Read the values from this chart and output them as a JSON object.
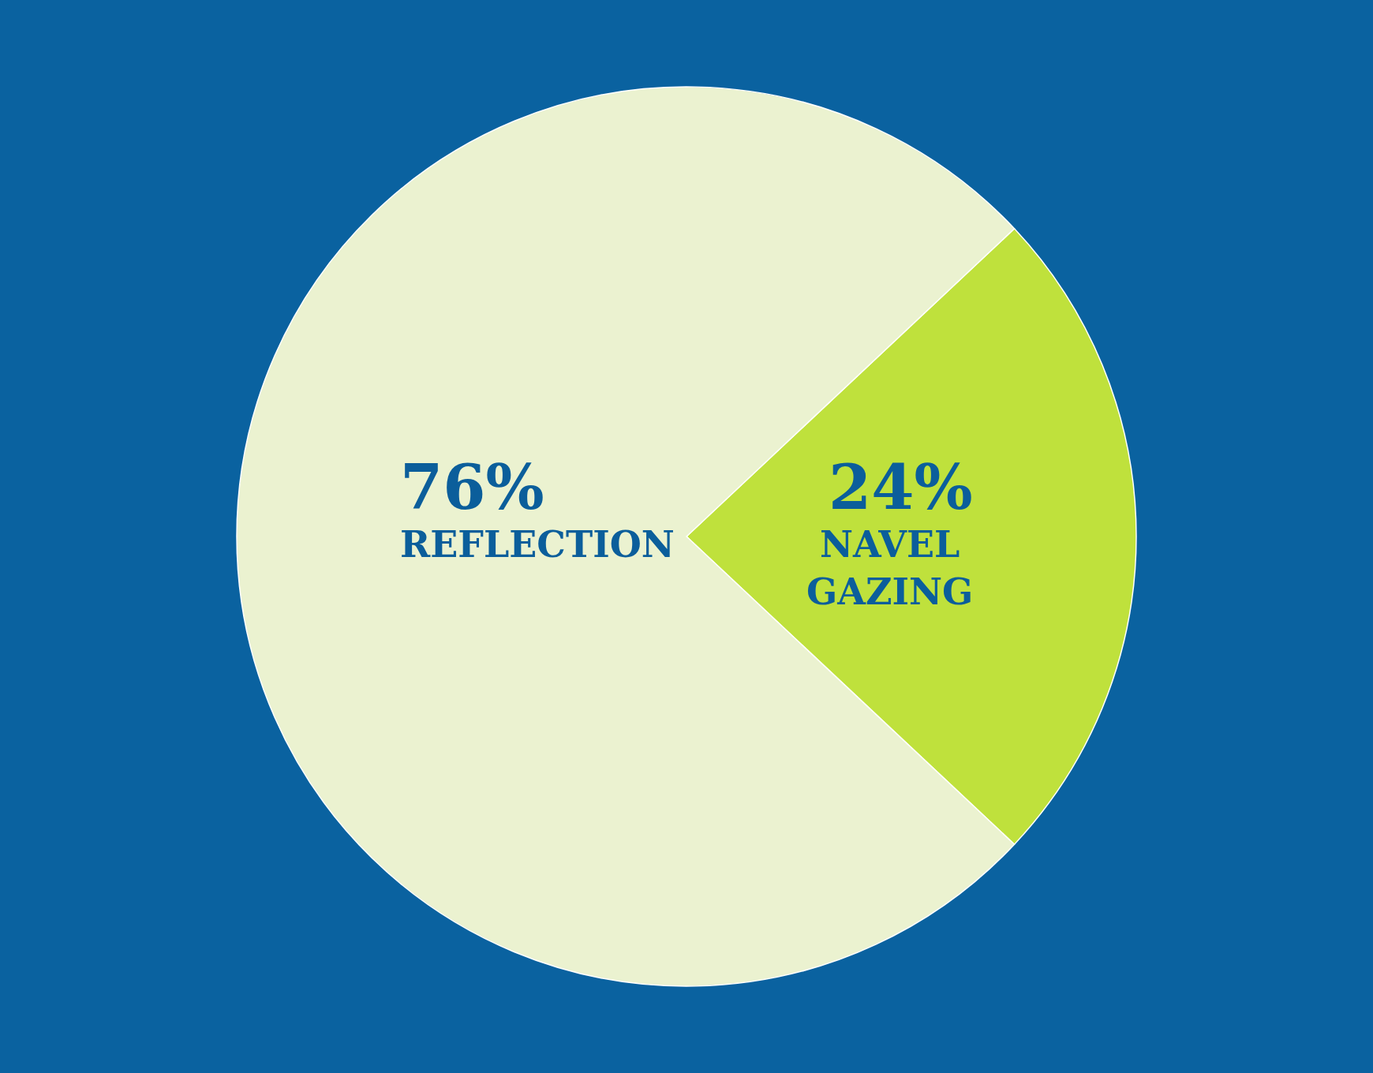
{
  "chart_data": {
    "type": "pie",
    "categories": [
      "NAVEL GAZING",
      "REFLECTION"
    ],
    "values": [
      24,
      76
    ],
    "value_labels": [
      "24%",
      "76%"
    ],
    "colors": [
      "#bfe13c",
      "#ebf2d0"
    ],
    "legend": false
  }
}
